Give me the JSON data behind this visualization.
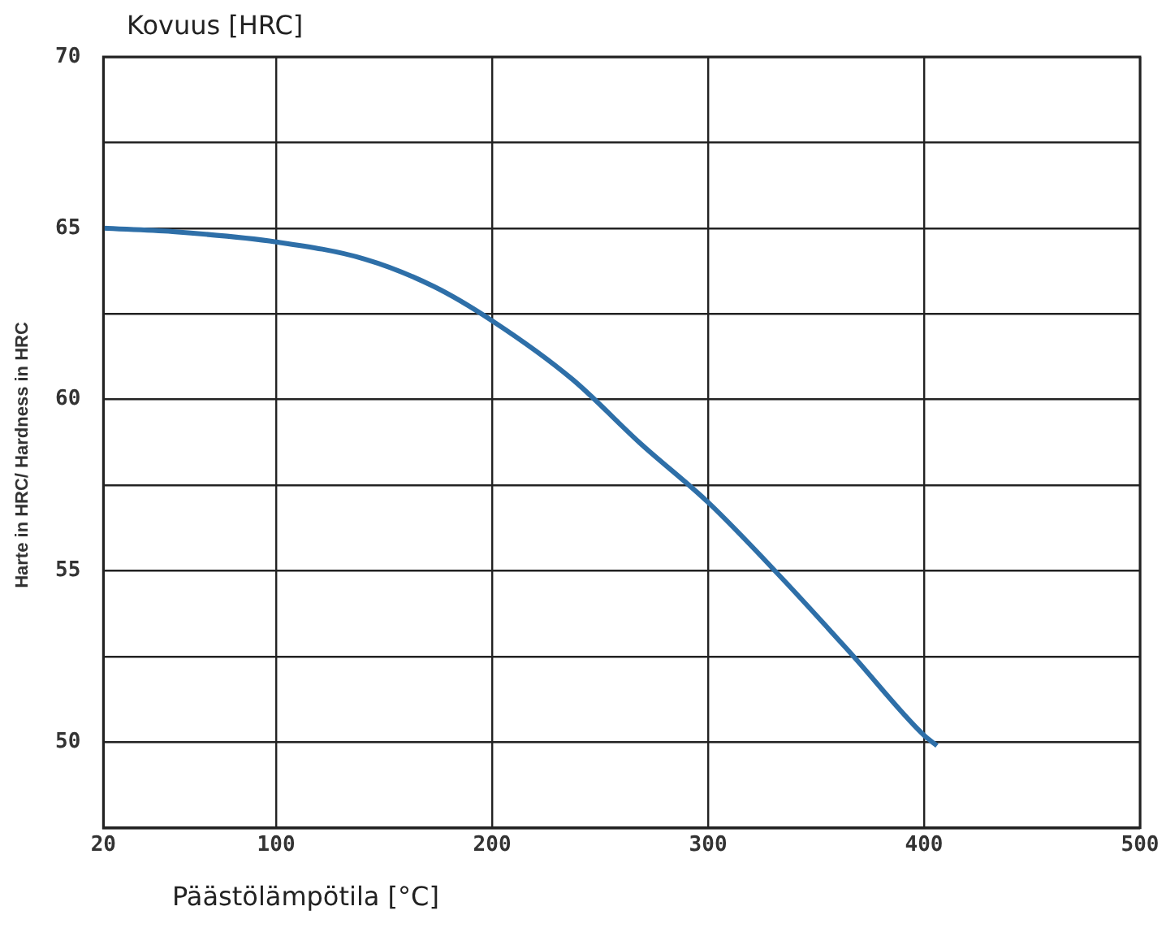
{
  "chart_data": {
    "type": "line",
    "title": "Kovuus [HRC]",
    "xlabel": "Päästölämpötila [°C]",
    "ylabel": "Harte in HRC/ Hardness in HRC",
    "x": [
      20,
      52,
      100,
      141,
      173,
      200,
      237,
      269,
      300,
      334,
      366,
      400,
      406
    ],
    "series": [
      {
        "color": "#2e6fa8",
        "values": [
          65,
          64.9,
          64.6,
          64.1,
          63.3,
          62.3,
          60.6,
          58.7,
          57,
          54.8,
          52.6,
          50.2,
          49.9
        ]
      }
    ],
    "xlim": [
      20,
      500
    ],
    "xticks": [
      20,
      100,
      200,
      300,
      400,
      500
    ],
    "ylim": [
      47.5,
      70
    ],
    "yticks": [
      {
        "value": 47.5,
        "label": null
      },
      50,
      {
        "value": 52.5,
        "label": null
      },
      55,
      {
        "value": 57.5,
        "label": null
      },
      60,
      {
        "value": 62.5,
        "label": null
      },
      65,
      {
        "value": 67.5,
        "label": null
      },
      70
    ],
    "grid": true,
    "legend": false,
    "marker": "none",
    "line_style": "solid"
  }
}
